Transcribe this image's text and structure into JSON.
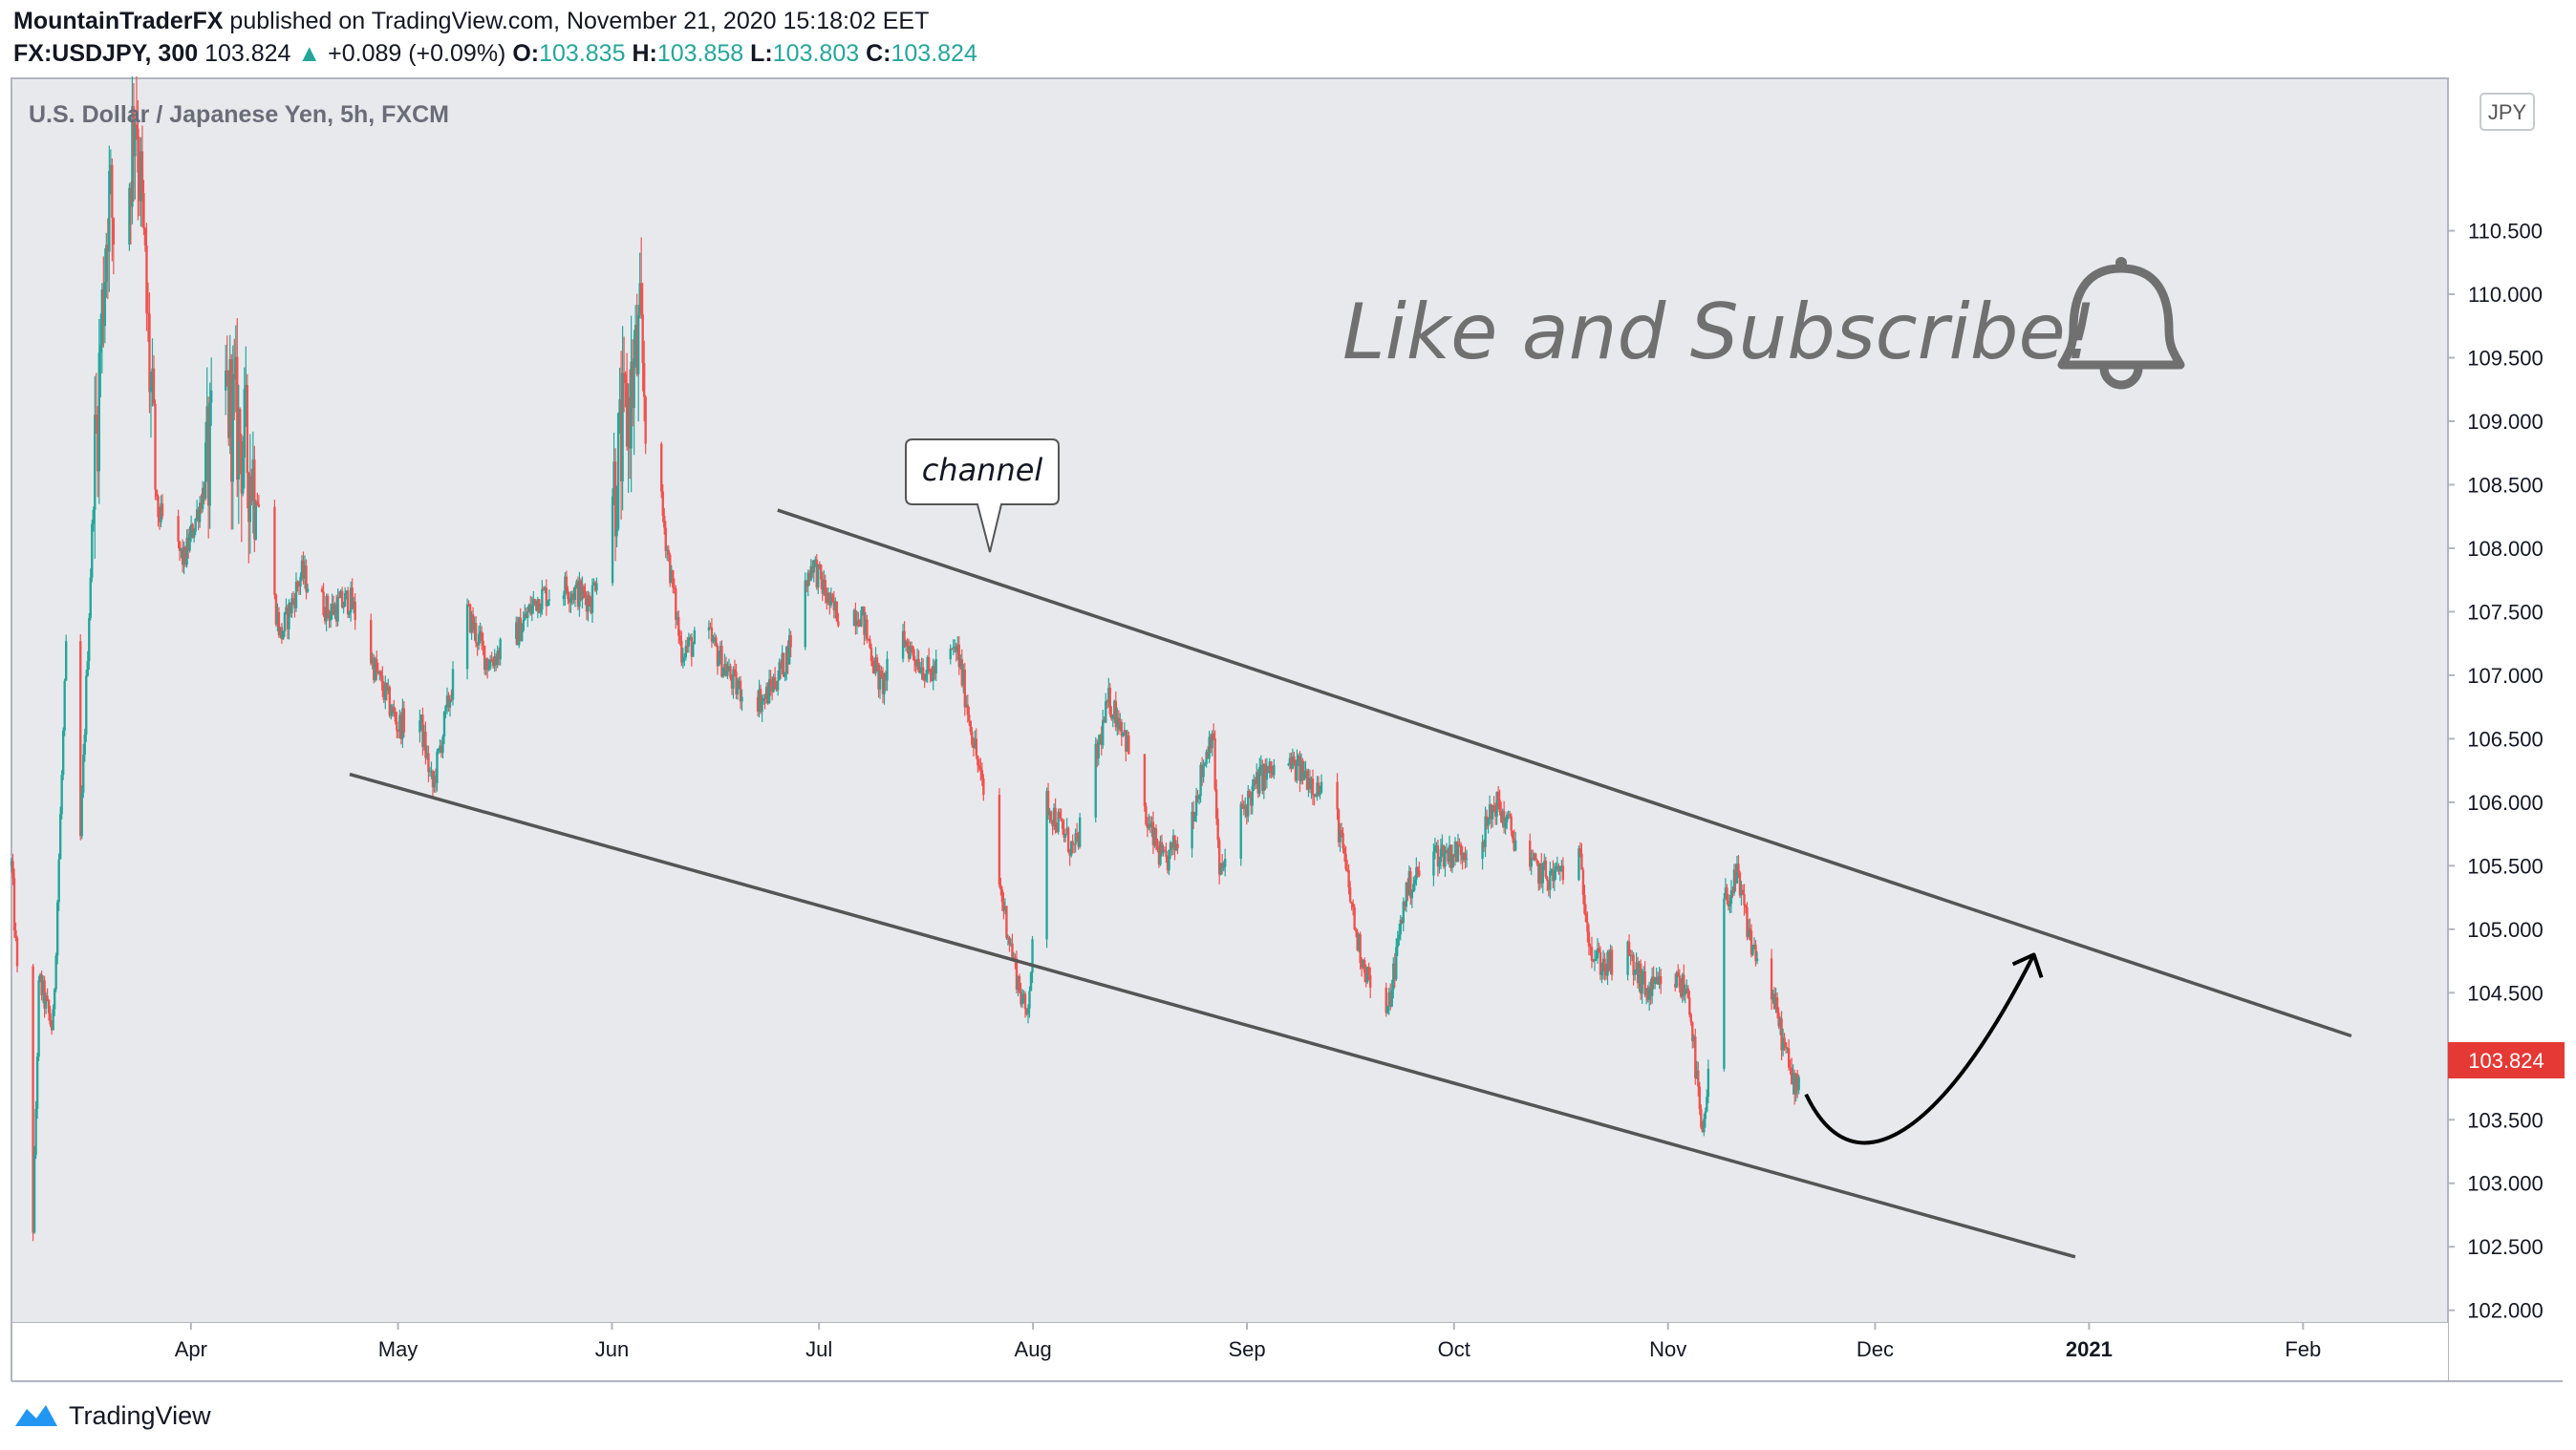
{
  "header": {
    "author": "MountainTraderFX",
    "published_text": "published on TradingView.com, November 21, 2020 15:18:02 EET",
    "symbol": "FX:USDJPY, 300",
    "last": "103.824",
    "change": "+0.089 (+0.09%)",
    "open_label": "O:",
    "open": "103.835",
    "high_label": "H:",
    "high": "103.858",
    "low_label": "L:",
    "low": "103.803",
    "close_label": "C:",
    "close": "103.824"
  },
  "footer": {
    "brand": "TradingView"
  },
  "chart_data": {
    "type": "candlestick",
    "title": "U.S. Dollar / Japanese Yen, 5h, FXCM",
    "currency": "JPY",
    "ylim": [
      101.9,
      111.7
    ],
    "y_ticks": [
      102.0,
      102.5,
      103.0,
      103.5,
      104.0,
      104.5,
      105.0,
      105.5,
      106.0,
      106.5,
      107.0,
      107.5,
      108.0,
      108.5,
      109.0,
      109.5,
      110.0,
      110.5
    ],
    "y_tick_labels": [
      "102.000",
      "102.500",
      "103.000",
      "103.500",
      "104.000",
      "104.500",
      "105.000",
      "105.500",
      "106.000",
      "106.500",
      "107.000",
      "107.500",
      "108.000",
      "108.500",
      "109.000",
      "109.500",
      "110.000",
      "110.500"
    ],
    "x_range": [
      "2020-03-06",
      "2021-02-22"
    ],
    "x_ticks": [
      {
        "date": "2020-04-01",
        "label": "Apr"
      },
      {
        "date": "2020-05-01",
        "label": "May"
      },
      {
        "date": "2020-06-01",
        "label": "Jun"
      },
      {
        "date": "2020-07-01",
        "label": "Jul"
      },
      {
        "date": "2020-08-01",
        "label": "Aug"
      },
      {
        "date": "2020-09-01",
        "label": "Sep"
      },
      {
        "date": "2020-10-01",
        "label": "Oct"
      },
      {
        "date": "2020-11-01",
        "label": "Nov"
      },
      {
        "date": "2020-12-01",
        "label": "Dec"
      },
      {
        "date": "2021-01-01",
        "label": "2021",
        "bold": true
      },
      {
        "date": "2021-02-01",
        "label": "Feb"
      }
    ],
    "price_path": [
      [
        "2020-03-06",
        105.5
      ],
      [
        "2020-03-09",
        102.4
      ],
      [
        "2020-03-10",
        104.6
      ],
      [
        "2020-03-12",
        104.2
      ],
      [
        "2020-03-14",
        107.3
      ],
      [
        "2020-03-16",
        105.7
      ],
      [
        "2020-03-18",
        108.6
      ],
      [
        "2020-03-20",
        110.8
      ],
      [
        "2020-03-22",
        110.2
      ],
      [
        "2020-03-24",
        111.6
      ],
      [
        "2020-03-27",
        108.3
      ],
      [
        "2020-03-31",
        107.9
      ],
      [
        "2020-04-03",
        108.5
      ],
      [
        "2020-04-06",
        109.2
      ],
      [
        "2020-04-10",
        108.6
      ],
      [
        "2020-04-14",
        107.3
      ],
      [
        "2020-04-17",
        107.8
      ],
      [
        "2020-04-21",
        107.5
      ],
      [
        "2020-04-24",
        107.6
      ],
      [
        "2020-04-28",
        107.0
      ],
      [
        "2020-05-01",
        106.6
      ],
      [
        "2020-05-04",
        106.7
      ],
      [
        "2020-05-06",
        106.1
      ],
      [
        "2020-05-08",
        106.7
      ],
      [
        "2020-05-11",
        107.5
      ],
      [
        "2020-05-14",
        107.1
      ],
      [
        "2020-05-18",
        107.3
      ],
      [
        "2020-05-21",
        107.6
      ],
      [
        "2020-05-25",
        107.7
      ],
      [
        "2020-05-29",
        107.6
      ],
      [
        "2020-06-02",
        108.7
      ],
      [
        "2020-06-05",
        109.6
      ],
      [
        "2020-06-08",
        108.4
      ],
      [
        "2020-06-11",
        107.2
      ],
      [
        "2020-06-15",
        107.3
      ],
      [
        "2020-06-19",
        106.9
      ],
      [
        "2020-06-23",
        106.8
      ],
      [
        "2020-06-26",
        107.1
      ],
      [
        "2020-06-30",
        107.9
      ],
      [
        "2020-07-03",
        107.5
      ],
      [
        "2020-07-07",
        107.5
      ],
      [
        "2020-07-10",
        106.9
      ],
      [
        "2020-07-13",
        107.3
      ],
      [
        "2020-07-17",
        107.0
      ],
      [
        "2020-07-21",
        107.2
      ],
      [
        "2020-07-24",
        106.3
      ],
      [
        "2020-07-27",
        105.4
      ],
      [
        "2020-07-29",
        104.8
      ],
      [
        "2020-07-31",
        104.3
      ],
      [
        "2020-08-03",
        106.0
      ],
      [
        "2020-08-07",
        105.6
      ],
      [
        "2020-08-12",
        106.8
      ],
      [
        "2020-08-14",
        106.6
      ],
      [
        "2020-08-17",
        105.9
      ],
      [
        "2020-08-20",
        105.5
      ],
      [
        "2020-08-24",
        105.9
      ],
      [
        "2020-08-27",
        106.6
      ],
      [
        "2020-08-28",
        105.4
      ],
      [
        "2020-08-31",
        105.9
      ],
      [
        "2020-09-03",
        106.2
      ],
      [
        "2020-09-07",
        106.3
      ],
      [
        "2020-09-10",
        106.2
      ],
      [
        "2020-09-14",
        105.9
      ],
      [
        "2020-09-17",
        104.9
      ],
      [
        "2020-09-21",
        104.2
      ],
      [
        "2020-09-24",
        105.3
      ],
      [
        "2020-09-28",
        105.6
      ],
      [
        "2020-10-01",
        105.6
      ],
      [
        "2020-10-05",
        105.7
      ],
      [
        "2020-10-07",
        106.0
      ],
      [
        "2020-10-12",
        105.5
      ],
      [
        "2020-10-15",
        105.4
      ],
      [
        "2020-10-19",
        105.6
      ],
      [
        "2020-10-21",
        104.8
      ],
      [
        "2020-10-23",
        104.7
      ],
      [
        "2020-10-26",
        104.8
      ],
      [
        "2020-10-29",
        104.5
      ],
      [
        "2020-11-02",
        104.6
      ],
      [
        "2020-11-04",
        104.5
      ],
      [
        "2020-11-06",
        103.3
      ],
      [
        "2020-11-09",
        105.2
      ],
      [
        "2020-11-11",
        105.4
      ],
      [
        "2020-11-13",
        104.9
      ],
      [
        "2020-11-16",
        104.5
      ],
      [
        "2020-11-19",
        103.8
      ],
      [
        "2020-11-20",
        103.82
      ]
    ],
    "last_price": 103.824,
    "annotations": {
      "channel_label": "channel",
      "promo_text": "Like and Subscribe!",
      "upper_channel": [
        [
          "2020-06-25",
          108.3
        ],
        [
          "2021-02-08",
          104.16
        ]
      ],
      "lower_channel": [
        [
          "2020-04-24",
          106.22
        ],
        [
          "2020-12-30",
          102.42
        ]
      ],
      "projection_path": [
        [
          "2020-11-21",
          103.7
        ],
        [
          "2020-11-28",
          102.9
        ],
        [
          "2020-12-11",
          103.4
        ],
        [
          "2020-12-24",
          104.8
        ]
      ]
    },
    "colors": {
      "up": "#26a69a",
      "down": "#ef5350",
      "price_tag": "#e53935",
      "background": "#e8e9ed",
      "channel": "#555555"
    },
    "icons": [
      "bell-icon",
      "tradingview-logo-icon"
    ]
  }
}
